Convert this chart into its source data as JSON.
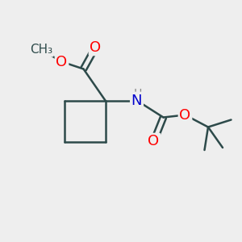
{
  "background_color": "#eeeeee",
  "bond_color": "#2d4a4a",
  "bond_width": 1.8,
  "atom_colors": {
    "O": "#ff0000",
    "N": "#0000cc",
    "H": "#888888",
    "C": "#2d4a4a"
  },
  "font_size_atom": 13,
  "font_size_small": 11
}
